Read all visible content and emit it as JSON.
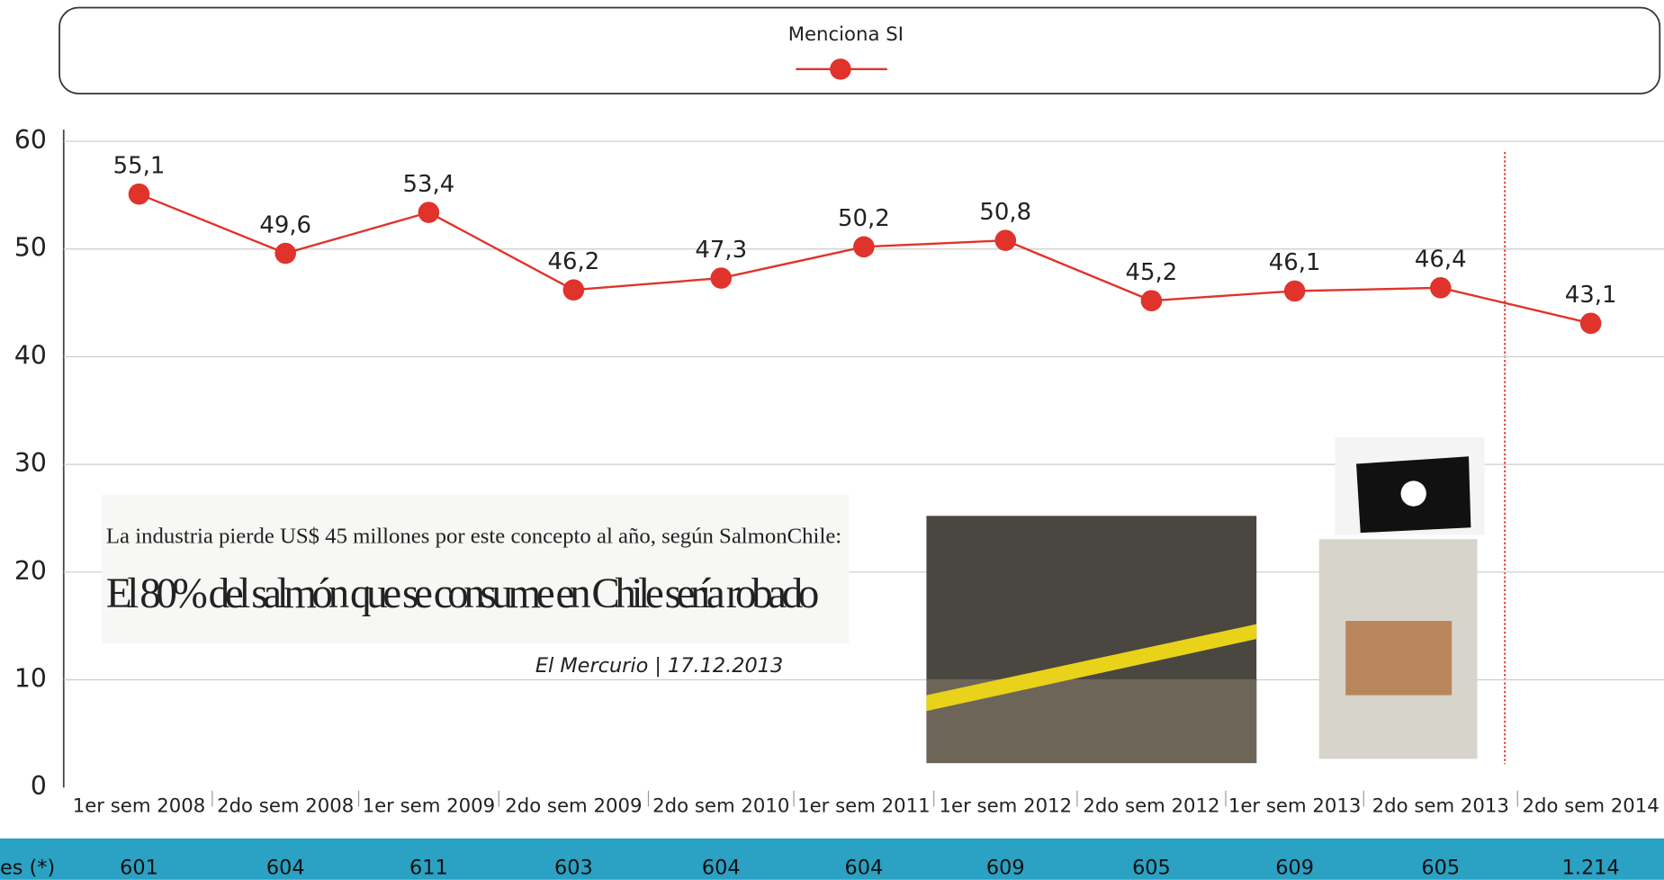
{
  "chart_data": {
    "type": "line",
    "legend": "Menciona SI",
    "categories": [
      "1er sem 2008",
      "2do sem 2008",
      "1er sem 2009",
      "2do sem 2009",
      "2do sem 2010",
      "1er sem 2011",
      "1er sem 2012",
      "2do sem 2012",
      "1er sem 2013",
      "2do sem 2013",
      "2do sem 2014"
    ],
    "series": [
      {
        "name": "Menciona SI",
        "color": "#e0332b",
        "values": [
          55.1,
          49.6,
          53.4,
          46.2,
          47.3,
          50.2,
          50.8,
          45.2,
          46.1,
          46.4,
          43.1
        ],
        "value_labels": [
          "55,1",
          "49,6",
          "53,4",
          "46,2",
          "47,3",
          "50,2",
          "50,8",
          "45,2",
          "46,1",
          "46,4",
          "43,1"
        ]
      }
    ],
    "ylim": [
      0,
      60
    ],
    "yticks": [
      0,
      10,
      20,
      30,
      40,
      50,
      60
    ],
    "grid": true,
    "row_label": "es (*)",
    "row_values": [
      601,
      604,
      611,
      603,
      604,
      604,
      609,
      605,
      609,
      605,
      {
        "value": 1214,
        "label": "1.214"
      }
    ],
    "annotations": {
      "clip_line1": "La industria pierde US$ 45 millones por este concepto al año, según SalmonChile:",
      "clip_line2": "El 80% del salmón que se consume en Chile sería robado",
      "source": "El Mercurio | 17.12.2013"
    }
  }
}
